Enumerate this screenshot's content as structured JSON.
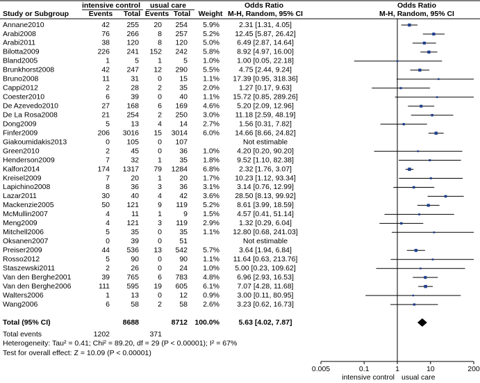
{
  "chart_data": {
    "type": "forest",
    "log": true,
    "group_headers": [
      "intensive control",
      "usual care",
      "Odds Ratio",
      "Odds Ratio"
    ],
    "column_headers": [
      "Study or Subgroup",
      "Events",
      "Total",
      "Events",
      "Total",
      "Weight",
      "M-H, Random, 95% CI",
      "M-H, Random, 95% CI"
    ],
    "rows": [
      {
        "study": "Annane2010",
        "e1": 42,
        "n1": 255,
        "e2": 20,
        "n2": 254,
        "weight": 5.9,
        "weight_label": "5.9%",
        "or": 2.31,
        "lo": 1.31,
        "hi": 4.05,
        "or_label": "2.31 [1.31, 4.05]"
      },
      {
        "study": "Arabi2008",
        "e1": 76,
        "n1": 266,
        "e2": 8,
        "n2": 257,
        "weight": 5.2,
        "weight_label": "5.2%",
        "or": 12.45,
        "lo": 5.87,
        "hi": 26.42,
        "or_label": "12.45 [5.87, 26.42]"
      },
      {
        "study": "Arabi2011",
        "e1": 38,
        "n1": 120,
        "e2": 8,
        "n2": 120,
        "weight": 5.0,
        "weight_label": "5.0%",
        "or": 6.49,
        "lo": 2.87,
        "hi": 14.64,
        "or_label": "6.49 [2.87, 14.64]"
      },
      {
        "study": "Bilotta2009",
        "e1": 226,
        "n1": 241,
        "e2": 152,
        "n2": 242,
        "weight": 5.8,
        "weight_label": "5.8%",
        "or": 8.92,
        "lo": 4.97,
        "hi": 16.0,
        "or_label": "8.92 [4.97, 16.00]"
      },
      {
        "study": "Bland2005",
        "e1": 1,
        "n1": 5,
        "e2": 1,
        "n2": 5,
        "weight": 1.0,
        "weight_label": "1.0%",
        "or": 1.0,
        "lo": 0.05,
        "hi": 22.18,
        "or_label": "1.00 [0.05, 22.18]"
      },
      {
        "study": "Brunkhorst2008",
        "e1": 42,
        "n1": 247,
        "e2": 12,
        "n2": 290,
        "weight": 5.5,
        "weight_label": "5.5%",
        "or": 4.75,
        "lo": 2.44,
        "hi": 9.24,
        "or_label": "4.75 [2.44, 9.24]"
      },
      {
        "study": "Bruno2008",
        "e1": 11,
        "n1": 31,
        "e2": 0,
        "n2": 15,
        "weight": 1.1,
        "weight_label": "1.1%",
        "or": 17.39,
        "lo": 0.95,
        "hi": 318.36,
        "or_label": "17.39 [0.95, 318.36]"
      },
      {
        "study": "Cappi2012",
        "e1": 2,
        "n1": 28,
        "e2": 2,
        "n2": 35,
        "weight": 2.0,
        "weight_label": "2.0%",
        "or": 1.27,
        "lo": 0.17,
        "hi": 9.63,
        "or_label": "1.27 [0.17, 9.63]"
      },
      {
        "study": "Coester2010",
        "e1": 6,
        "n1": 39,
        "e2": 0,
        "n2": 40,
        "weight": 1.1,
        "weight_label": "1.1%",
        "or": 15.72,
        "lo": 0.85,
        "hi": 289.26,
        "or_label": "15.72 [0.85, 289.26]"
      },
      {
        "study": "De Azevedo2010",
        "e1": 27,
        "n1": 168,
        "e2": 6,
        "n2": 169,
        "weight": 4.6,
        "weight_label": "4.6%",
        "or": 5.2,
        "lo": 2.09,
        "hi": 12.96,
        "or_label": "5.20 [2.09, 12.96]"
      },
      {
        "study": "De La Rosa2008",
        "e1": 21,
        "n1": 254,
        "e2": 2,
        "n2": 250,
        "weight": 3.0,
        "weight_label": "3.0%",
        "or": 11.18,
        "lo": 2.59,
        "hi": 48.19,
        "or_label": "11.18 [2.59, 48.19]"
      },
      {
        "study": "Dong2009",
        "e1": 5,
        "n1": 13,
        "e2": 4,
        "n2": 14,
        "weight": 2.7,
        "weight_label": "2.7%",
        "or": 1.56,
        "lo": 0.31,
        "hi": 7.82,
        "or_label": "1.56 [0.31, 7.82]"
      },
      {
        "study": "Finfer2009",
        "e1": 206,
        "n1": 3016,
        "e2": 15,
        "n2": 3014,
        "weight": 6.0,
        "weight_label": "6.0%",
        "or": 14.66,
        "lo": 8.66,
        "hi": 24.82,
        "or_label": "14.66 [8.66, 24.82]"
      },
      {
        "study": "Giakoumidakis2013",
        "e1": 0,
        "n1": 105,
        "e2": 0,
        "n2": 107,
        "or_label": "Not estimable"
      },
      {
        "study": "Green2010",
        "e1": 2,
        "n1": 45,
        "e2": 0,
        "n2": 36,
        "weight": 1.0,
        "weight_label": "1.0%",
        "or": 4.2,
        "lo": 0.2,
        "hi": 90.2,
        "or_label": "4.20 [0.20, 90.20]"
      },
      {
        "study": "Henderson2009",
        "e1": 7,
        "n1": 32,
        "e2": 1,
        "n2": 35,
        "weight": 1.8,
        "weight_label": "1.8%",
        "or": 9.52,
        "lo": 1.1,
        "hi": 82.38,
        "or_label": "9.52 [1.10, 82.38]"
      },
      {
        "study": "Kalfon2014",
        "e1": 174,
        "n1": 1317,
        "e2": 79,
        "n2": 1284,
        "weight": 6.8,
        "weight_label": "6.8%",
        "or": 2.32,
        "lo": 1.76,
        "hi": 3.07,
        "or_label": "2.32 [1.76, 3.07]"
      },
      {
        "study": "Kreisel2009",
        "e1": 7,
        "n1": 20,
        "e2": 1,
        "n2": 20,
        "weight": 1.7,
        "weight_label": "1.7%",
        "or": 10.23,
        "lo": 1.12,
        "hi": 93.34,
        "or_label": "10.23 [1.12, 93.34]"
      },
      {
        "study": "Lapichino2008",
        "e1": 8,
        "n1": 36,
        "e2": 3,
        "n2": 36,
        "weight": 3.1,
        "weight_label": "3.1%",
        "or": 3.14,
        "lo": 0.76,
        "hi": 12.99,
        "or_label": "3.14 [0.76, 12.99]"
      },
      {
        "study": "Lazar2011",
        "e1": 30,
        "n1": 40,
        "e2": 4,
        "n2": 42,
        "weight": 3.6,
        "weight_label": "3.6%",
        "or": 28.5,
        "lo": 8.13,
        "hi": 99.92,
        "or_label": "28.50 [8.13, 99.92]"
      },
      {
        "study": "Mackenzie2005",
        "e1": 50,
        "n1": 121,
        "e2": 9,
        "n2": 119,
        "weight": 5.2,
        "weight_label": "5.2%",
        "or": 8.61,
        "lo": 3.99,
        "hi": 18.59,
        "or_label": "8.61 [3.99, 18.59]"
      },
      {
        "study": "McMullin2007",
        "e1": 4,
        "n1": 11,
        "e2": 1,
        "n2": 9,
        "weight": 1.5,
        "weight_label": "1.5%",
        "or": 4.57,
        "lo": 0.41,
        "hi": 51.14,
        "or_label": "4.57 [0.41, 51.14]"
      },
      {
        "study": "Meng2009",
        "e1": 4,
        "n1": 121,
        "e2": 3,
        "n2": 119,
        "weight": 2.9,
        "weight_label": "2.9%",
        "or": 1.32,
        "lo": 0.29,
        "hi": 6.04,
        "or_label": "1.32 [0.29, 6.04]"
      },
      {
        "study": "Mitchell2006",
        "e1": 5,
        "n1": 35,
        "e2": 0,
        "n2": 35,
        "weight": 1.1,
        "weight_label": "1.1%",
        "or": 12.8,
        "lo": 0.68,
        "hi": 241.03,
        "or_label": "12.80 [0.68, 241.03]"
      },
      {
        "study": "Oksanen2007",
        "e1": 0,
        "n1": 39,
        "e2": 0,
        "n2": 51,
        "or_label": "Not estimable"
      },
      {
        "study": "Preiser2009",
        "e1": 44,
        "n1": 536,
        "e2": 13,
        "n2": 542,
        "weight": 5.7,
        "weight_label": "5.7%",
        "or": 3.64,
        "lo": 1.94,
        "hi": 6.84,
        "or_label": "3.64 [1.94, 6.84]"
      },
      {
        "study": "Rosso2012",
        "e1": 5,
        "n1": 90,
        "e2": 0,
        "n2": 90,
        "weight": 1.1,
        "weight_label": "1.1%",
        "or": 11.64,
        "lo": 0.63,
        "hi": 213.76,
        "or_label": "11.64 [0.63, 213.76]"
      },
      {
        "study": "Staszewski2011",
        "e1": 2,
        "n1": 26,
        "e2": 0,
        "n2": 24,
        "weight": 1.0,
        "weight_label": "1.0%",
        "or": 5.0,
        "lo": 0.23,
        "hi": 109.62,
        "or_label": "5.00 [0.23, 109.62]"
      },
      {
        "study": "Van den Berghe2001",
        "e1": 39,
        "n1": 765,
        "e2": 6,
        "n2": 783,
        "weight": 4.8,
        "weight_label": "4.8%",
        "or": 6.96,
        "lo": 2.93,
        "hi": 16.53,
        "or_label": "6.96 [2.93, 16.53]"
      },
      {
        "study": "Van den Berghe2006",
        "e1": 111,
        "n1": 595,
        "e2": 19,
        "n2": 605,
        "weight": 6.1,
        "weight_label": "6.1%",
        "or": 7.07,
        "lo": 4.28,
        "hi": 11.68,
        "or_label": "7.07 [4.28, 11.68]"
      },
      {
        "study": "Walters2006",
        "e1": 1,
        "n1": 13,
        "e2": 0,
        "n2": 12,
        "weight": 0.9,
        "weight_label": "0.9%",
        "or": 3.0,
        "lo": 0.11,
        "hi": 80.95,
        "or_label": "3.00 [0.11, 80.95]"
      },
      {
        "study": "Wang2006",
        "e1": 6,
        "n1": 58,
        "e2": 2,
        "n2": 58,
        "weight": 2.6,
        "weight_label": "2.6%",
        "or": 3.23,
        "lo": 0.62,
        "hi": 16.73,
        "or_label": "3.23 [0.62, 16.73]"
      }
    ],
    "total": {
      "study": "Total (95% CI)",
      "n1": 8688,
      "n2": 8712,
      "weight_label": "100.0%",
      "or": 5.63,
      "lo": 4.02,
      "hi": 7.87,
      "or_label": "5.63 [4.02, 7.87]"
    },
    "total_events": {
      "label": "Total events",
      "e1": 1202,
      "e2": 371
    },
    "heterogeneity": "Heterogeneity: Tau² = 0.41; Chi² = 89.20, df = 29 (P < 0.00001); I² = 67%",
    "overall_effect": "Test for overall effect: Z = 10.09 (P < 0.00001)",
    "xlim": [
      0.005,
      200
    ],
    "xticks": [
      0.005,
      0.1,
      1,
      10,
      200
    ],
    "x_labels": [
      "intensive control",
      "usual care"
    ],
    "color": "#1f3f8f"
  }
}
